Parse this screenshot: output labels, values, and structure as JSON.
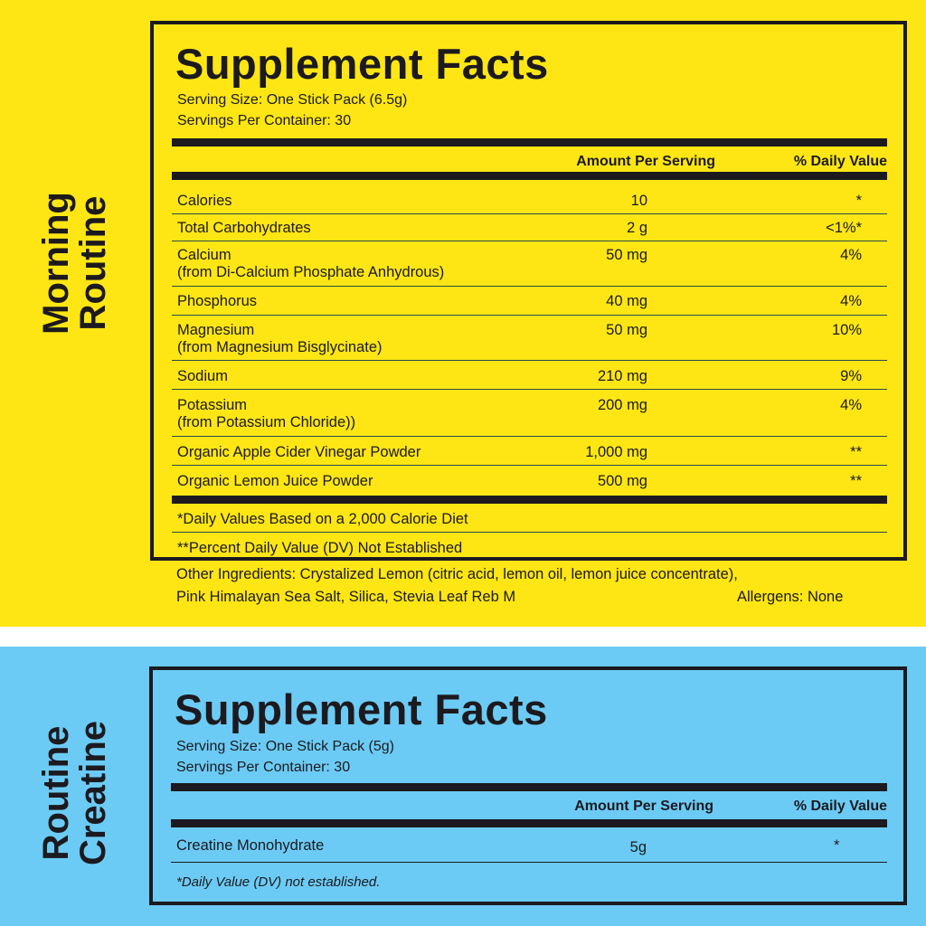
{
  "morning": {
    "side_label": [
      "Morning",
      "Routine"
    ],
    "title": "Supplement Facts",
    "serving_size": "Serving Size: One Stick Pack (6.5g)",
    "servings_per_container": "Servings Per Container: 30",
    "header_amount": "Amount Per Serving",
    "header_dv": "% Daily Value",
    "rows": [
      {
        "name": "Calories",
        "sub": "",
        "amount": "10",
        "dv": "*"
      },
      {
        "name": "Total Carbohydrates",
        "sub": "",
        "amount": "2 g",
        "dv": "<1%*"
      },
      {
        "name": "Calcium",
        "sub": "(from Di-Calcium Phosphate Anhydrous)",
        "amount": "50 mg",
        "dv": "4%"
      },
      {
        "name": "Phosphorus",
        "sub": "",
        "amount": "40 mg",
        "dv": "4%"
      },
      {
        "name": "Magnesium",
        "sub": "(from Magnesium Bisglycinate)",
        "amount": "50 mg",
        "dv": "10%"
      },
      {
        "name": "Sodium",
        "sub": "",
        "amount": "210 mg",
        "dv": "9%"
      },
      {
        "name": "Potassium",
        "sub": "(from Potassium Chloride))",
        "amount": "200 mg",
        "dv": "4%"
      },
      {
        "name": "Organic Apple Cider Vinegar Powder",
        "sub": "",
        "amount": "1,000 mg",
        "dv": "**"
      },
      {
        "name": "Organic Lemon Juice Powder",
        "sub": "",
        "amount": "500 mg",
        "dv": "**"
      }
    ],
    "footnote_1": "*Daily Values Based on a 2,000 Calorie Diet",
    "footnote_2": "**Percent Daily Value (DV) Not Established",
    "other_ingredients_1": "Other Ingredients: Crystalized Lemon (citric acid, lemon oil, lemon juice concentrate),",
    "other_ingredients_2": "Pink Himalayan Sea Salt, Silica, Stevia Leaf Reb M",
    "allergens": "Allergens: None"
  },
  "creatine": {
    "side_label": [
      "Routine",
      "Creatine"
    ],
    "title": "Supplement Facts",
    "serving_size": "Serving Size: One Stick Pack (5g)",
    "servings_per_container": "Servings Per Container: 30",
    "header_amount": "Amount Per Serving",
    "header_dv": "% Daily Value",
    "rows": [
      {
        "name": "Creatine Monohydrate",
        "amount": "5g",
        "dv": "*"
      }
    ],
    "footnote": "*Daily Value (DV) not established."
  },
  "colors": {
    "yellow": "#fde614",
    "blue": "#6ccbf4",
    "ink": "#1c1a1f"
  }
}
